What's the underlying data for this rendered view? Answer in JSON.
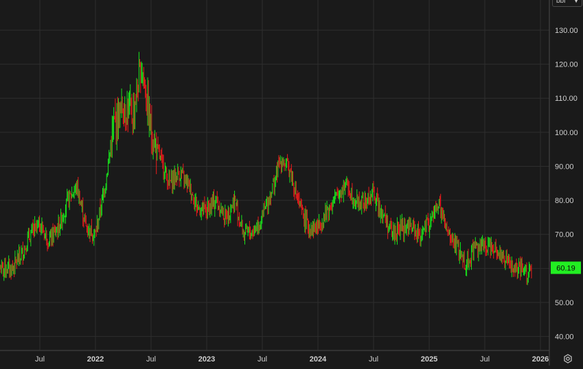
{
  "unit_selector": {
    "value": "bbl",
    "icon": "chevron-down-icon"
  },
  "settings": {
    "icon": "gear-icon"
  },
  "colors": {
    "background": "#1a1a1a",
    "grid": "#2e2e2e",
    "up": "#19e61c",
    "down": "#ee1c1c",
    "axis_text": "#d0d0d0",
    "last_price_bg": "#22ee22"
  },
  "chart_data": {
    "type": "line",
    "style": "candlestick",
    "ylim": [
      36,
      136
    ],
    "y_ticks": [
      "40.00",
      "50.00",
      "60.00",
      "70.00",
      "80.00",
      "90.00",
      "100.00",
      "110.00",
      "120.00",
      "130.00"
    ],
    "x_tick_labels": [
      "Jul",
      "2022",
      "Jul",
      "2023",
      "Jul",
      "2024",
      "Jul",
      "2025",
      "Jul",
      "2026"
    ],
    "last_price": "60.19",
    "grid": true,
    "series": [
      {
        "x": [
          "2021-04",
          "2021-05",
          "2021-06",
          "2021-07",
          "2021-08",
          "2021-09",
          "2021-10",
          "2021-11",
          "2021-12",
          "2022-01",
          "2022-02",
          "2022-03",
          "2022-04",
          "2022-05",
          "2022-06",
          "2022-07",
          "2022-08",
          "2022-09",
          "2022-10",
          "2022-11",
          "2022-12",
          "2023-01",
          "2023-02",
          "2023-03",
          "2023-04",
          "2023-05",
          "2023-06",
          "2023-07",
          "2023-08",
          "2023-09",
          "2023-10",
          "2023-11",
          "2023-12",
          "2024-01",
          "2024-02",
          "2024-03",
          "2024-04",
          "2024-05",
          "2024-06",
          "2024-07",
          "2024-08",
          "2024-09",
          "2024-10",
          "2024-11",
          "2024-12",
          "2025-01",
          "2025-02",
          "2025-03",
          "2025-04",
          "2025-05",
          "2025-06",
          "2025-07",
          "2025-08",
          "2025-09",
          "2025-10",
          "2025-11"
        ],
        "y": [
          60,
          64,
          70,
          73,
          68,
          72,
          80,
          84,
          72,
          70,
          84,
          102,
          108,
          105,
          120,
          100,
          92,
          85,
          88,
          85,
          78,
          77,
          80,
          75,
          80,
          70,
          71,
          75,
          83,
          92,
          89,
          78,
          72,
          72,
          77,
          81,
          85,
          80,
          79,
          82,
          76,
          70,
          72,
          72,
          70,
          73,
          79,
          70,
          66,
          61,
          67,
          66,
          67,
          63,
          60,
          59
        ]
      }
    ]
  }
}
